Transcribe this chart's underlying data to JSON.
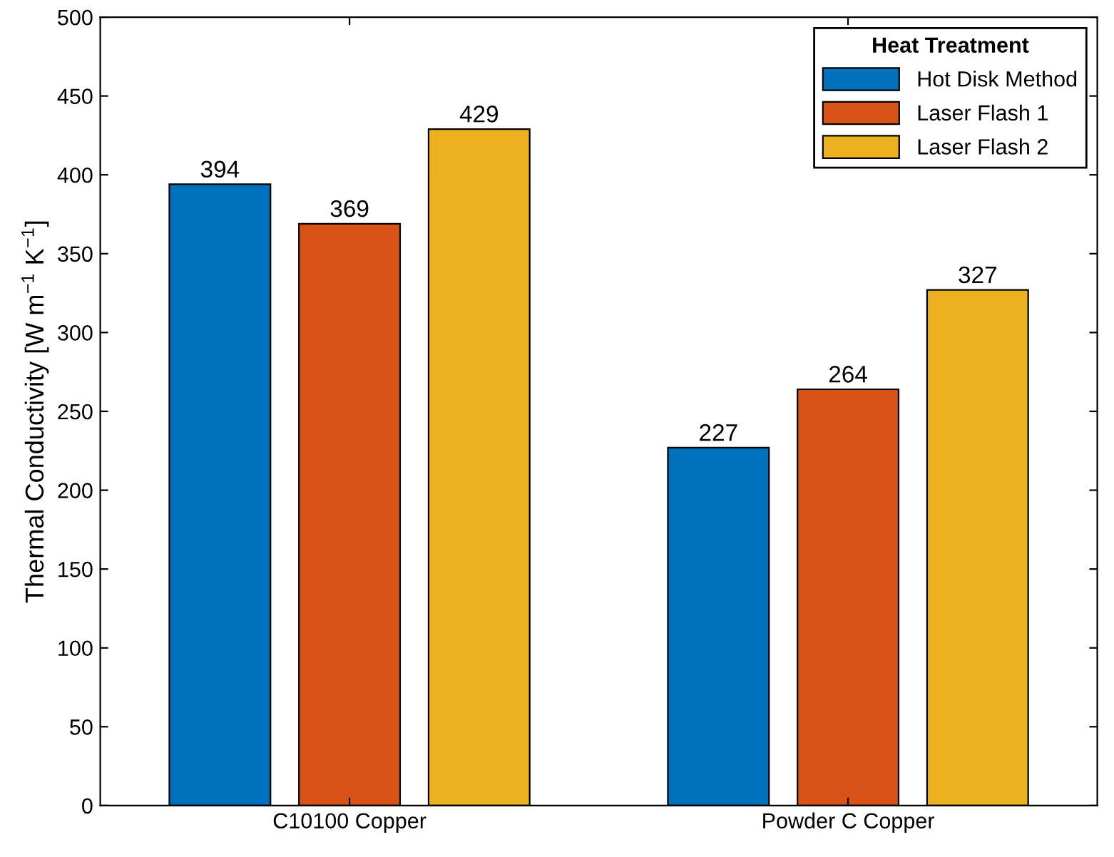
{
  "chart_data": {
    "type": "bar",
    "ylabel": "Thermal Conductivity [W m$^{−1}$ K$^{−1}$]",
    "legend_title": "Heat Treatment",
    "categories": [
      "C10100 Copper",
      "Powder C Copper"
    ],
    "series": [
      {
        "name": "Hot Disk Method",
        "color": "#0072bd",
        "values": [
          394,
          227
        ]
      },
      {
        "name": "Laser Flash 1",
        "color": "#d95319",
        "values": [
          369,
          264
        ]
      },
      {
        "name": "Laser Flash 2",
        "color": "#edb120",
        "values": [
          429,
          327
        ]
      }
    ],
    "ylim": [
      0,
      500
    ],
    "yticks": [
      0,
      50,
      100,
      150,
      200,
      250,
      300,
      350,
      400,
      450,
      500
    ],
    "data_labels": true,
    "legend": "top right",
    "grid": false
  }
}
